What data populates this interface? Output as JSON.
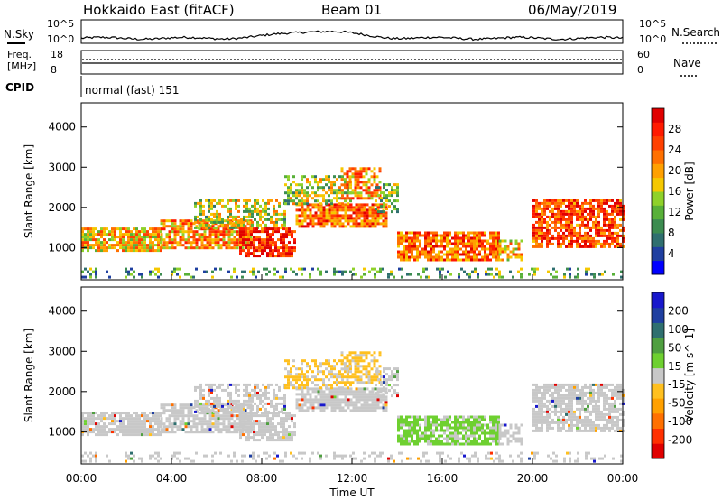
{
  "header": {
    "station": "Hokkaido East (fitACF)",
    "beam": "Beam 01",
    "date": "06/May/2019"
  },
  "noise_panel": {
    "left_label": "N.Sky",
    "right_label": "N.Search",
    "left_ticks": [
      "10^5",
      "10^0"
    ],
    "right_ticks": [
      "10^5",
      "10^0"
    ]
  },
  "freq_panel": {
    "left_label_1": "Freq.",
    "left_label_2": "[MHz]",
    "left_ticks": [
      "18",
      "8"
    ],
    "right_label": "Nave",
    "right_ticks": [
      "60",
      "0"
    ]
  },
  "cpid_panel": {
    "label": "CPID",
    "value": "normal (fast) 151"
  },
  "colors": {
    "power": [
      "#0000ff",
      "#1f3fa0",
      "#2f6f6f",
      "#3c8c50",
      "#58b038",
      "#8fd12a",
      "#f5c800",
      "#ffa000",
      "#ff7000",
      "#ff4000",
      "#ff1a00",
      "#e00000"
    ],
    "velocity": [
      "#1818cc",
      "#1f3fa0",
      "#2f6f6f",
      "#4f9f40",
      "#6ed030",
      "#c8c8c8",
      "#ffc020",
      "#ffa000",
      "#ff7000",
      "#ff3000",
      "#e00000"
    ]
  },
  "chart_data": [
    {
      "type": "heatmap",
      "name": "power",
      "ylabel": "Slant Range [km]",
      "xlabel": "Time UT",
      "y_ticks": [
        1000,
        2000,
        3000,
        4000
      ],
      "x_ticks": [
        "00:00",
        "04:00",
        "08:00",
        "12:00",
        "16:00",
        "20:00",
        "00:00"
      ],
      "ylim": [
        200,
        4600
      ],
      "xlim": [
        0,
        24
      ],
      "colorbar_label": "Power [dB]",
      "colorbar_ticks": [
        4,
        8,
        12,
        16,
        20,
        24,
        28
      ],
      "colorbar_range": [
        0,
        30
      ]
    },
    {
      "type": "heatmap",
      "name": "velocity",
      "ylabel": "Slant Range [km]",
      "xlabel": "Time UT",
      "y_ticks": [
        1000,
        2000,
        3000,
        4000
      ],
      "x_ticks": [
        "00:00",
        "04:00",
        "08:00",
        "12:00",
        "16:00",
        "20:00",
        "00:00"
      ],
      "ylim": [
        200,
        4600
      ],
      "xlim": [
        0,
        24
      ],
      "colorbar_label": "Velocity [m s^-1]",
      "colorbar_ticks": [
        "200",
        "100",
        "50",
        "15",
        "-15",
        "-50",
        "-100",
        "-200"
      ]
    }
  ]
}
